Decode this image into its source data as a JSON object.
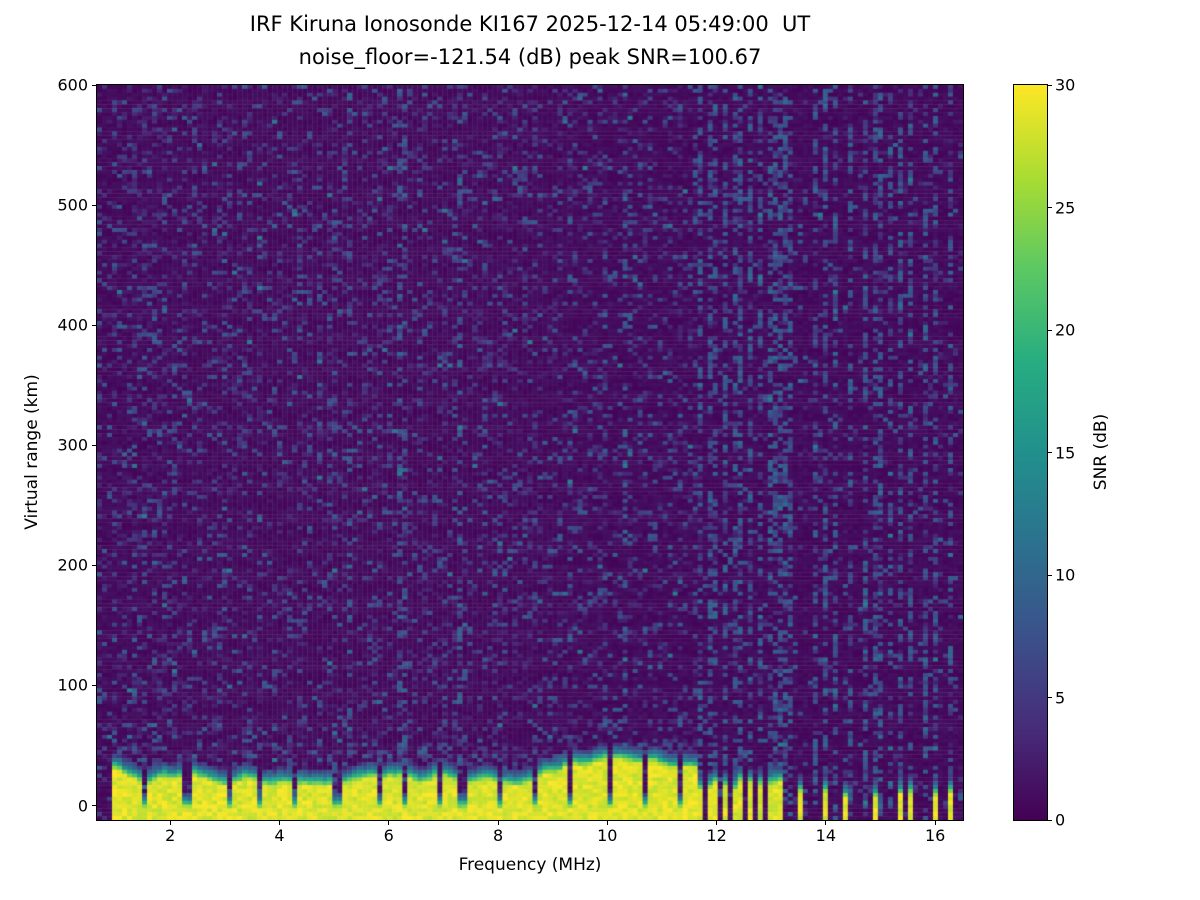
{
  "chart_data": {
    "type": "heatmap",
    "title": "IRF Kiruna Ionosonde KI167 2025-12-14 05:49:00  UT",
    "subtitle": "noise_floor=-121.54 (dB) peak SNR=100.67",
    "xlabel": "Frequency (MHz)",
    "ylabel": "Virtual range (km)",
    "colorbar_label": "SNR (dB)",
    "colormap": "viridis",
    "xlim": [
      0.66,
      16.51
    ],
    "ylim": [
      -12,
      600
    ],
    "zlim": [
      0,
      30
    ],
    "x_ticks": [
      2,
      4,
      6,
      8,
      10,
      12,
      14,
      16
    ],
    "y_ticks": [
      0,
      100,
      200,
      300,
      400,
      500,
      600
    ],
    "colorbar_ticks": [
      0,
      5,
      10,
      15,
      20,
      25,
      30
    ],
    "noise_floor_db": -121.54,
    "peak_snr_db": 100.67,
    "ground_echo_band": {
      "freq_start": 0.95,
      "freq_end": 11.62,
      "top_km_mean": 32,
      "top_km_jitter": 10,
      "snr_db": 30
    },
    "band_notch_freqs": [
      1.55,
      2.3,
      3.1,
      3.67,
      4.3,
      5.05,
      5.8,
      6.3,
      6.9,
      7.35,
      8.05,
      8.7,
      9.35,
      10.05,
      10.7,
      11.3
    ],
    "sparse_bar_freqs": [
      11.7,
      11.85,
      12.0,
      12.15,
      12.3,
      12.47,
      12.63,
      12.8,
      12.97,
      13.12,
      13.5,
      14.0,
      14.32,
      14.95,
      15.38,
      15.56,
      16.0,
      16.25
    ],
    "rfi_stripe_freqs": [
      5.3,
      6.25,
      7.3,
      10.3,
      11.7,
      11.85,
      12.0,
      12.15,
      12.3,
      12.47,
      12.63,
      12.8,
      12.97,
      13.12,
      13.3,
      13.8,
      14.0,
      14.2,
      14.45,
      14.7,
      14.95,
      15.2,
      15.38,
      15.56,
      15.8,
      16.0,
      16.25
    ],
    "background_noise": {
      "base_db": 1.0,
      "speckle_db_max": 9,
      "speckle_density": 0.25
    }
  }
}
